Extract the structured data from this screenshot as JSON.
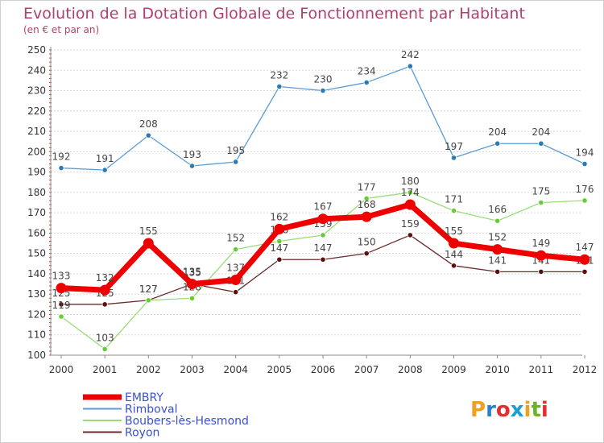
{
  "chart_data": {
    "type": "line",
    "title": "Evolution de la Dotation Globale de Fonctionnement par Habitant",
    "subtitle": "(en € et par an)",
    "xlabel": "",
    "ylabel": "",
    "x": [
      "2000",
      "2001",
      "2002",
      "2003",
      "2004",
      "2005",
      "2006",
      "2007",
      "2008",
      "2009",
      "2010",
      "2011",
      "2012"
    ],
    "ylim": [
      100,
      250
    ],
    "yticks": [
      "100",
      "110",
      "120",
      "130",
      "140",
      "150",
      "160",
      "170",
      "180",
      "190",
      "200",
      "210",
      "220",
      "230",
      "240",
      "250"
    ],
    "grid": "horizontal",
    "legend_position": "bottom-left",
    "series": [
      {
        "name": "EMBRY",
        "color": "#ee0000",
        "values": [
          133,
          132,
          155,
          135,
          137,
          162,
          167,
          168,
          174,
          155,
          152,
          149,
          147
        ]
      },
      {
        "name": "Rimboval",
        "color": "#5b9bd5",
        "values": [
          192,
          191,
          208,
          193,
          195,
          232,
          230,
          234,
          242,
          197,
          204,
          204,
          194
        ]
      },
      {
        "name": "Boubers-lès-Hesmond",
        "color": "#99dd77",
        "values": [
          119,
          103,
          127,
          128,
          152,
          156,
          159,
          177,
          180,
          171,
          166,
          175,
          176
        ]
      },
      {
        "name": "Royon",
        "color": "#6b2a2a",
        "values": [
          125,
          125,
          127,
          135,
          131,
          147,
          147,
          150,
          159,
          144,
          141,
          141,
          141
        ]
      }
    ]
  },
  "branding": {
    "logo_text": "Proxiti",
    "colors": [
      "#f0a020",
      "#2a7fd0",
      "#e03030",
      "#1a9fd0",
      "#f0a020",
      "#70b030",
      "#e03030"
    ]
  }
}
